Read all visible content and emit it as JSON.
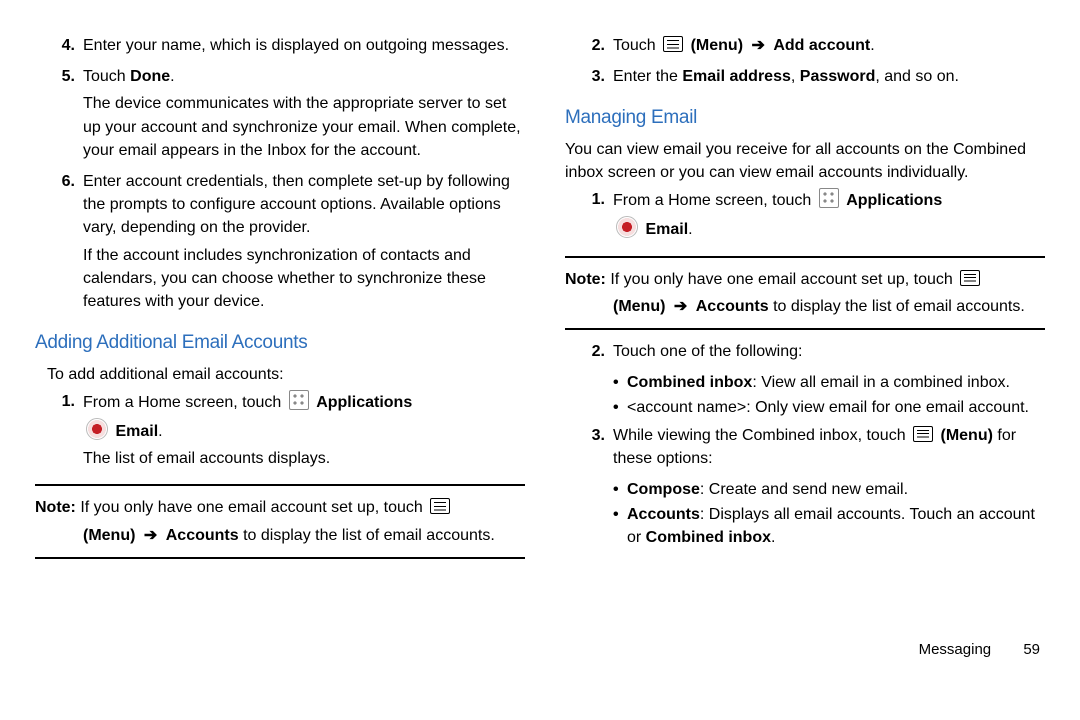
{
  "footer": {
    "chapter": "Messaging",
    "page": "59"
  },
  "left": {
    "steps_top": [
      {
        "num": "4.",
        "paras": [
          "Enter your name, which is displayed on outgoing messages."
        ]
      },
      {
        "num": "5.",
        "paras": [
          {
            "segments": [
              {
                "t": "Touch "
              },
              {
                "t": "Done",
                "b": true
              },
              {
                "t": "."
              }
            ]
          },
          "The device communicates with the appropriate server to set up your account and synchronize your email. When complete, your email appears in the Inbox for the account."
        ]
      },
      {
        "num": "6.",
        "paras": [
          "Enter account credentials, then complete set-up by following the prompts to configure account options. Available options vary, depending on the provider.",
          "If the account includes synchronization of contacts and calendars, you can choose whether to synchronize these features with your device."
        ]
      }
    ],
    "heading1": "Adding Additional Email Accounts",
    "intro1": "To add additional email accounts:",
    "steps_add": [
      {
        "num": "1.",
        "paras": [
          {
            "segments": [
              {
                "t": "From a Home screen, touch "
              },
              {
                "icon": "apps"
              },
              {
                "t": " "
              },
              {
                "t": "Applications",
                "b": true
              }
            ]
          },
          {
            "segments": [
              {
                "icon": "email"
              },
              {
                "t": " "
              },
              {
                "t": "Email",
                "b": true
              },
              {
                "t": "."
              }
            ],
            "indent": true
          },
          "The list of email accounts displays."
        ]
      }
    ],
    "note1_line1": {
      "segments": [
        {
          "t": "Note:",
          "b": true
        },
        {
          "t": " If you only have one email account set up, touch "
        },
        {
          "icon": "menu"
        }
      ]
    },
    "note1_line2": {
      "segments": [
        {
          "t": "(Menu)",
          "b": true
        },
        {
          "t": " "
        },
        {
          "arrow": true
        },
        {
          "t": " "
        },
        {
          "t": "Accounts",
          "b": true
        },
        {
          "t": " to display the list of email accounts."
        }
      ]
    }
  },
  "right": {
    "steps_top": [
      {
        "num": "2.",
        "paras": [
          {
            "segments": [
              {
                "t": "Touch "
              },
              {
                "icon": "menu"
              },
              {
                "t": " "
              },
              {
                "t": "(Menu)",
                "b": true
              },
              {
                "t": " "
              },
              {
                "arrow": true
              },
              {
                "t": " "
              },
              {
                "t": "Add account",
                "b": true
              },
              {
                "t": "."
              }
            ]
          }
        ]
      },
      {
        "num": "3.",
        "paras": [
          {
            "segments": [
              {
                "t": "Enter the "
              },
              {
                "t": "Email address",
                "b": true
              },
              {
                "t": ", "
              },
              {
                "t": "Password",
                "b": true
              },
              {
                "t": ", and so on."
              }
            ]
          }
        ]
      }
    ],
    "heading2": "Managing Email",
    "intro2": "You can view email you receive for all accounts on the Combined inbox screen or you can view email accounts individually.",
    "steps_manage1": [
      {
        "num": "1.",
        "paras": [
          {
            "segments": [
              {
                "t": "From a Home screen, touch "
              },
              {
                "icon": "apps"
              },
              {
                "t": " "
              },
              {
                "t": "Applications",
                "b": true
              }
            ]
          },
          {
            "segments": [
              {
                "icon": "email"
              },
              {
                "t": " "
              },
              {
                "t": "Email",
                "b": true
              },
              {
                "t": "."
              }
            ],
            "indent": true
          }
        ]
      }
    ],
    "note2_line1": {
      "segments": [
        {
          "t": "Note:",
          "b": true
        },
        {
          "t": " If you only have one email account set up, touch "
        },
        {
          "icon": "menu"
        }
      ]
    },
    "note2_line2": {
      "segments": [
        {
          "t": "(Menu)",
          "b": true
        },
        {
          "t": " "
        },
        {
          "arrow": true
        },
        {
          "t": " "
        },
        {
          "t": "Accounts",
          "b": true
        },
        {
          "t": " to display the list of email accounts."
        }
      ]
    },
    "steps_manage2": [
      {
        "num": "2.",
        "paras": [
          "Touch one of the following:"
        ],
        "bullets": [
          {
            "segments": [
              {
                "t": "Combined inbox",
                "b": true
              },
              {
                "t": ": View all email in a combined inbox."
              }
            ]
          },
          {
            "segments": [
              {
                "t": "<account name>: Only view email for one email account."
              }
            ]
          }
        ]
      },
      {
        "num": "3.",
        "paras": [
          {
            "segments": [
              {
                "t": "While viewing the Combined inbox, touch "
              },
              {
                "icon": "menu"
              },
              {
                "t": " "
              },
              {
                "t": "(Menu)",
                "b": true
              },
              {
                "t": " for these options:"
              }
            ]
          }
        ],
        "bullets": [
          {
            "segments": [
              {
                "t": "Compose",
                "b": true
              },
              {
                "t": ": Create and send new email."
              }
            ]
          },
          {
            "segments": [
              {
                "t": "Accounts",
                "b": true
              },
              {
                "t": ": Displays all email accounts. Touch an account or "
              },
              {
                "t": "Combined inbox",
                "b": true
              },
              {
                "t": "."
              }
            ]
          }
        ]
      }
    ]
  }
}
